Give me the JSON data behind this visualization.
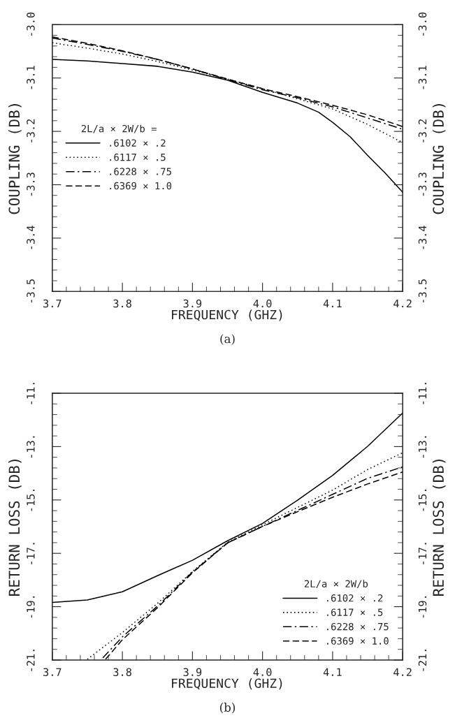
{
  "chart_data": [
    {
      "type": "line",
      "xlabel": "FREQUENCY (GHZ)",
      "ylabel": "COUPLING (DB)",
      "y2label": "COUPLING (DB)",
      "legend_title": "2L/a × 2W/b =",
      "legend": "left",
      "annotations": [
        "(a)"
      ],
      "xlim": [
        3.7,
        4.2
      ],
      "ylim": [
        -3.5,
        -3.0
      ],
      "y2lim": [
        -3.5,
        -3.0
      ],
      "xticks": [
        3.7,
        {
          "value": 3.72,
          "label": null
        },
        {
          "value": 3.74,
          "label": null
        },
        {
          "value": 3.76,
          "label": null
        },
        {
          "value": 3.78,
          "label": null
        },
        3.8,
        {
          "value": 3.82,
          "label": null
        },
        {
          "value": 3.84,
          "label": null
        },
        {
          "value": 3.86,
          "label": null
        },
        {
          "value": 3.88,
          "label": null
        },
        3.9,
        {
          "value": 3.92,
          "label": null
        },
        {
          "value": 3.94,
          "label": null
        },
        {
          "value": 3.96,
          "label": null
        },
        {
          "value": 3.98,
          "label": null
        },
        {
          "value": 4.0,
          "label": "4.0"
        },
        {
          "value": 4.02,
          "label": null
        },
        {
          "value": 4.04,
          "label": null
        },
        {
          "value": 4.06,
          "label": null
        },
        {
          "value": 4.08,
          "label": null
        },
        4.1,
        {
          "value": 4.12,
          "label": null
        },
        {
          "value": 4.14,
          "label": null
        },
        {
          "value": 4.16,
          "label": null
        },
        {
          "value": 4.18,
          "label": null
        },
        4.2
      ],
      "yticks": [
        -3.5,
        {
          "value": -3.48,
          "label": null
        },
        {
          "value": -3.46,
          "label": null
        },
        {
          "value": -3.44,
          "label": null
        },
        {
          "value": -3.42,
          "label": null
        },
        -3.4,
        {
          "value": -3.38,
          "label": null
        },
        {
          "value": -3.36,
          "label": null
        },
        {
          "value": -3.34,
          "label": null
        },
        {
          "value": -3.32,
          "label": null
        },
        -3.3,
        {
          "value": -3.28,
          "label": null
        },
        {
          "value": -3.26,
          "label": null
        },
        {
          "value": -3.24,
          "label": null
        },
        {
          "value": -3.22,
          "label": null
        },
        -3.2,
        {
          "value": -3.18,
          "label": null
        },
        {
          "value": -3.16,
          "label": null
        },
        {
          "value": -3.14,
          "label": null
        },
        {
          "value": -3.12,
          "label": null
        },
        -3.1,
        {
          "value": -3.08,
          "label": null
        },
        {
          "value": -3.06,
          "label": null
        },
        {
          "value": -3.04,
          "label": null
        },
        {
          "value": -3.02,
          "label": null
        },
        {
          "value": -3.0,
          "label": "-3.0"
        }
      ],
      "y2ticks": [
        -3.5,
        {
          "value": -3.48,
          "label": null
        },
        {
          "value": -3.46,
          "label": null
        },
        {
          "value": -3.44,
          "label": null
        },
        {
          "value": -3.42,
          "label": null
        },
        -3.4,
        {
          "value": -3.38,
          "label": null
        },
        {
          "value": -3.36,
          "label": null
        },
        {
          "value": -3.34,
          "label": null
        },
        {
          "value": -3.32,
          "label": null
        },
        -3.3,
        {
          "value": -3.28,
          "label": null
        },
        {
          "value": -3.26,
          "label": null
        },
        {
          "value": -3.24,
          "label": null
        },
        {
          "value": -3.22,
          "label": null
        },
        -3.2,
        {
          "value": -3.18,
          "label": null
        },
        {
          "value": -3.16,
          "label": null
        },
        {
          "value": -3.14,
          "label": null
        },
        {
          "value": -3.12,
          "label": null
        },
        -3.1,
        {
          "value": -3.08,
          "label": null
        },
        {
          "value": -3.06,
          "label": null
        },
        {
          "value": -3.04,
          "label": null
        },
        {
          "value": -3.02,
          "label": null
        },
        {
          "value": -3.0,
          "label": "-3.0"
        }
      ],
      "series": [
        {
          "name": ".6102 × .2",
          "color": "#000000",
          "line_style": "solid",
          "x": [
            3.7,
            3.75,
            3.8,
            3.85,
            3.9,
            3.95,
            4.0,
            4.05,
            4.08,
            4.1,
            4.125,
            4.15,
            4.175,
            4.2
          ],
          "values": [
            -3.065,
            -3.068,
            -3.073,
            -3.078,
            -3.089,
            -3.104,
            -3.127,
            -3.147,
            -3.164,
            -3.183,
            -3.21,
            -3.245,
            -3.278,
            -3.314
          ]
        },
        {
          "name": ".6117 × .5",
          "color": "#000000",
          "line_style": "dotted",
          "x": [
            3.7,
            3.75,
            3.8,
            3.85,
            3.9,
            3.95,
            4.0,
            4.05,
            4.1,
            4.15,
            4.2
          ],
          "values": [
            -3.034,
            -3.044,
            -3.055,
            -3.069,
            -3.085,
            -3.102,
            -3.12,
            -3.139,
            -3.158,
            -3.187,
            -3.221
          ]
        },
        {
          "name": ".6228 × .75",
          "color": "#000000",
          "line_style": "dashdot",
          "x": [
            3.7,
            3.75,
            3.8,
            3.85,
            3.9,
            3.95,
            4.0,
            4.05,
            4.1,
            4.15,
            4.2
          ],
          "values": [
            -3.025,
            -3.037,
            -3.05,
            -3.065,
            -3.083,
            -3.103,
            -3.122,
            -3.137,
            -3.154,
            -3.175,
            -3.196
          ]
        },
        {
          "name": ".6369 × 1.0",
          "color": "#000000",
          "line_style": "dashed",
          "x": [
            3.7,
            3.75,
            3.8,
            3.85,
            3.9,
            3.95,
            4.0,
            4.05,
            4.1,
            4.15,
            4.2
          ],
          "values": [
            -3.023,
            -3.035,
            -3.049,
            -3.065,
            -3.083,
            -3.102,
            -3.12,
            -3.135,
            -3.151,
            -3.169,
            -3.191
          ]
        }
      ]
    },
    {
      "type": "line",
      "xlabel": "FREQUENCY (GHZ)",
      "ylabel": "RETURN LOSS (DB)",
      "y2label": "RETURN LOSS (DB)",
      "legend_title": "2L/a × 2W/b",
      "legend": "lower right",
      "annotations": [
        "(b)"
      ],
      "xlim": [
        3.7,
        4.2
      ],
      "ylim": [
        -21,
        -11
      ],
      "y2lim": [
        -21,
        -11
      ],
      "xticks": [
        3.7,
        {
          "value": 3.72,
          "label": null
        },
        {
          "value": 3.74,
          "label": null
        },
        {
          "value": 3.76,
          "label": null
        },
        {
          "value": 3.78,
          "label": null
        },
        3.8,
        {
          "value": 3.82,
          "label": null
        },
        {
          "value": 3.84,
          "label": null
        },
        {
          "value": 3.86,
          "label": null
        },
        {
          "value": 3.88,
          "label": null
        },
        3.9,
        {
          "value": 3.92,
          "label": null
        },
        {
          "value": 3.94,
          "label": null
        },
        {
          "value": 3.96,
          "label": null
        },
        {
          "value": 3.98,
          "label": null
        },
        {
          "value": 4.0,
          "label": "4.0"
        },
        {
          "value": 4.02,
          "label": null
        },
        {
          "value": 4.04,
          "label": null
        },
        {
          "value": 4.06,
          "label": null
        },
        {
          "value": 4.08,
          "label": null
        },
        4.1,
        {
          "value": 4.12,
          "label": null
        },
        {
          "value": 4.14,
          "label": null
        },
        {
          "value": 4.16,
          "label": null
        },
        {
          "value": 4.18,
          "label": null
        },
        4.2
      ],
      "yticks": [
        {
          "value": -21,
          "label": "-21."
        },
        {
          "value": -20.6,
          "label": null
        },
        {
          "value": -20.2,
          "label": null
        },
        {
          "value": -19.8,
          "label": null
        },
        {
          "value": -19.4,
          "label": null
        },
        {
          "value": -19,
          "label": "-19."
        },
        {
          "value": -18.6,
          "label": null
        },
        {
          "value": -18.2,
          "label": null
        },
        {
          "value": -17.8,
          "label": null
        },
        {
          "value": -17.4,
          "label": null
        },
        {
          "value": -17,
          "label": "-17."
        },
        {
          "value": -16.6,
          "label": null
        },
        {
          "value": -16.2,
          "label": null
        },
        {
          "value": -15.8,
          "label": null
        },
        {
          "value": -15.4,
          "label": null
        },
        {
          "value": -15,
          "label": "-15."
        },
        {
          "value": -14.6,
          "label": null
        },
        {
          "value": -14.2,
          "label": null
        },
        {
          "value": -13.8,
          "label": null
        },
        {
          "value": -13.4,
          "label": null
        },
        {
          "value": -13,
          "label": "-13."
        },
        {
          "value": -12.6,
          "label": null
        },
        {
          "value": -12.2,
          "label": null
        },
        {
          "value": -11.8,
          "label": null
        },
        {
          "value": -11.4,
          "label": null
        },
        {
          "value": -11,
          "label": "-11."
        }
      ],
      "y2ticks": [
        {
          "value": -21,
          "label": "-21."
        },
        {
          "value": -20.6,
          "label": null
        },
        {
          "value": -20.2,
          "label": null
        },
        {
          "value": -19.8,
          "label": null
        },
        {
          "value": -19.4,
          "label": null
        },
        {
          "value": -19,
          "label": "-19."
        },
        {
          "value": -18.6,
          "label": null
        },
        {
          "value": -18.2,
          "label": null
        },
        {
          "value": -17.8,
          "label": null
        },
        {
          "value": -17.4,
          "label": null
        },
        {
          "value": -17,
          "label": "-17."
        },
        {
          "value": -16.6,
          "label": null
        },
        {
          "value": -16.2,
          "label": null
        },
        {
          "value": -15.8,
          "label": null
        },
        {
          "value": -15.4,
          "label": null
        },
        {
          "value": -15,
          "label": "-15."
        },
        {
          "value": -14.6,
          "label": null
        },
        {
          "value": -14.2,
          "label": null
        },
        {
          "value": -13.8,
          "label": null
        },
        {
          "value": -13.4,
          "label": null
        },
        {
          "value": -13,
          "label": "-13."
        },
        {
          "value": -12.6,
          "label": null
        },
        {
          "value": -12.2,
          "label": null
        },
        {
          "value": -11.8,
          "label": null
        },
        {
          "value": -11.4,
          "label": null
        },
        {
          "value": -11,
          "label": "-11."
        }
      ],
      "series": [
        {
          "name": ".6102 × .2",
          "color": "#000000",
          "line_style": "solid",
          "x": [
            3.7,
            3.75,
            3.8,
            3.85,
            3.9,
            3.95,
            4.0,
            4.05,
            4.1,
            4.15,
            4.2
          ],
          "values": [
            -18.84,
            -18.75,
            -18.44,
            -17.84,
            -17.26,
            -16.53,
            -15.88,
            -15.01,
            -14.08,
            -12.99,
            -11.74
          ]
        },
        {
          "name": ".6117 × .5",
          "color": "#000000",
          "line_style": "dotted",
          "x": [
            3.75,
            3.8,
            3.85,
            3.9,
            3.95,
            4.0,
            4.05,
            4.1,
            4.15,
            4.2
          ],
          "values": [
            -20.97,
            -19.97,
            -18.88,
            -17.68,
            -16.59,
            -15.93,
            -15.28,
            -14.63,
            -13.86,
            -13.23
          ]
        },
        {
          "name": ".6228 × .75",
          "color": "#000000",
          "line_style": "dashdot",
          "x": [
            3.772,
            3.8,
            3.85,
            3.9,
            3.95,
            4.0,
            4.05,
            4.1,
            4.15,
            4.2
          ],
          "values": [
            -20.92,
            -20.13,
            -18.98,
            -17.7,
            -16.61,
            -15.99,
            -15.39,
            -14.79,
            -14.19,
            -13.76
          ]
        },
        {
          "name": ".6369 × 1.0",
          "color": "#000000",
          "line_style": "dashed",
          "x": [
            3.776,
            3.8,
            3.85,
            3.9,
            3.95,
            4.0,
            4.05,
            4.1,
            4.15,
            4.2
          ],
          "values": [
            -20.97,
            -20.24,
            -19.04,
            -17.73,
            -16.61,
            -15.99,
            -15.44,
            -14.9,
            -14.4,
            -13.95
          ]
        }
      ]
    }
  ]
}
